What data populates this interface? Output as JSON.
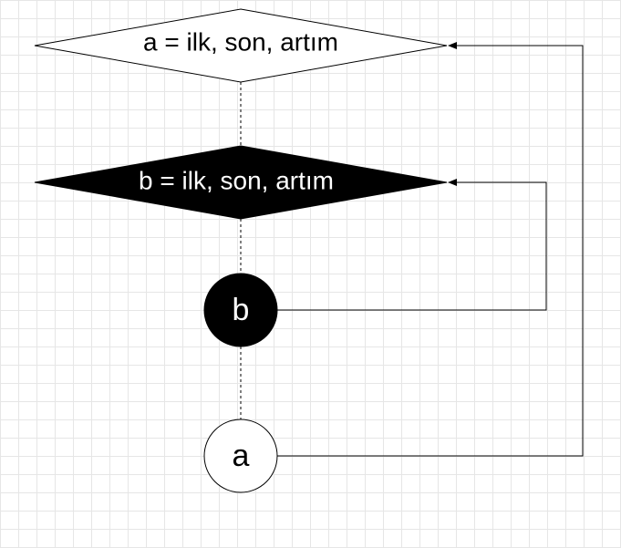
{
  "diagram": {
    "outer_loop": {
      "start_label": "a = ilk, son, artım",
      "end_label": "a"
    },
    "inner_loop": {
      "start_label": "b = ilk, son, artım",
      "end_label": "b"
    }
  },
  "colors": {
    "background": "#ffffff",
    "grid": "#e6e6e6",
    "stroke": "#000000",
    "dark_fill": "#000000",
    "light_fill": "#ffffff",
    "dark_text": "#ffffff",
    "light_text": "#000000"
  }
}
